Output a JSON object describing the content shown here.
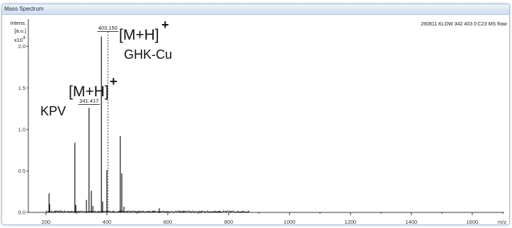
{
  "window": {
    "title": "Mass Spectrum"
  },
  "spectrum_id": "260811 KLOW 342 403 0:C23 MS Raw",
  "chart_data": {
    "type": "line",
    "ylabel": "Intens.",
    "yunit": "[a.u.]",
    "yscale_prefix": "x10",
    "yscale_exponent": "4",
    "xlabel": "m/z",
    "xlim": [
      142,
      1705
    ],
    "ylim": [
      0,
      2.32
    ],
    "xticks": [
      200,
      400,
      600,
      800,
      1000,
      1200,
      1400,
      1600
    ],
    "xtick_labels": [
      "200",
      "400",
      "600",
      "800",
      "1000",
      "1200",
      "1400",
      "1600"
    ],
    "yticks": [
      0,
      0.5,
      1.0,
      1.5,
      2.0
    ],
    "ytick_labels": [
      "0.0",
      "0.5",
      "1.0",
      "1.5",
      "2.0"
    ],
    "grid": false,
    "legend": "none",
    "series": [
      {
        "color": "#000000",
        "x": [
          210,
          212,
          295,
          298,
          333,
          341.4,
          349,
          354,
          382,
          386,
          400,
          444,
          449,
          456,
          572
        ],
        "y": [
          0.23,
          0.1,
          0.84,
          0.09,
          0.15,
          1.26,
          0.26,
          0.08,
          2.12,
          0.13,
          0.51,
          0.92,
          0.47,
          0.07,
          0.05
        ]
      }
    ],
    "baseline_noise": {
      "x_start": 200,
      "x_end": 870,
      "level": 0.02
    },
    "annotations": [
      {
        "x": 403.15,
        "label": "403.150",
        "ion": "[M+H]",
        "charge": "+",
        "compound": "GHK-Cu"
      },
      {
        "x": 341.417,
        "label": "341.417",
        "ion": "[M+H]",
        "charge": "+",
        "compound": "KPV"
      }
    ]
  }
}
